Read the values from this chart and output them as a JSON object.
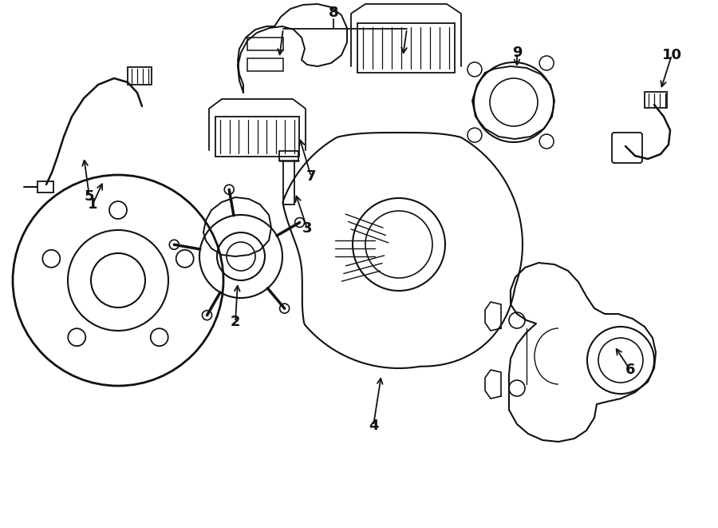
{
  "background_color": "#ffffff",
  "line_color": "#111111",
  "line_width": 1.3,
  "figsize": [
    9.0,
    6.61
  ],
  "dpi": 100,
  "xlim": [
    0,
    900
  ],
  "ylim": [
    0,
    661
  ]
}
